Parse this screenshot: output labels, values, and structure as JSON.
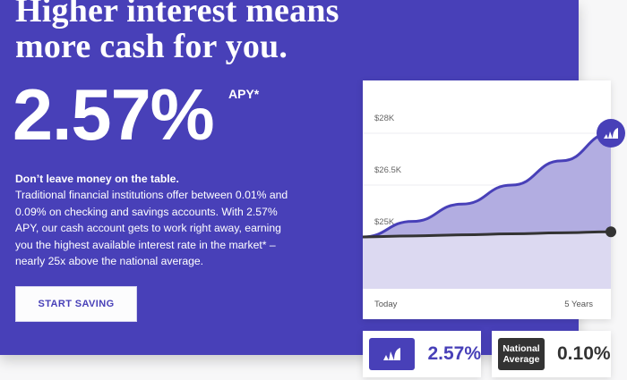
{
  "hero": {
    "headline_lines": [
      "Higher interest means",
      "more cash for you."
    ],
    "rate": "2.57%",
    "rate_suffix": "APY*",
    "lead": "Don’t leave money on the table.",
    "body_lines": [
      "Traditional financial institutions offer between 0.01% and",
      "0.09% on checking and savings accounts. With 2.57%",
      "APY, our cash account gets to work right away, earning",
      "you the highest available interest rate in the market* –",
      "nearly 25x above the national average."
    ],
    "cta_label": "START SAVING",
    "background_color": "#4840b8"
  },
  "chart_data": {
    "type": "area",
    "x_labels": [
      "Today",
      "5 Years"
    ],
    "x": [
      0,
      1,
      2,
      3,
      4,
      5
    ],
    "y_ticks": [
      {
        "value": 25000,
        "label": "$25K"
      },
      {
        "value": 26500,
        "label": "$26.5K"
      },
      {
        "value": 28000,
        "label": "$28K"
      }
    ],
    "ylim": [
      23500,
      29500
    ],
    "grid": true,
    "series": [
      {
        "values": [
          25000,
          25450,
          25950,
          26500,
          27200,
          28000
        ],
        "color": "#4840b8",
        "end_marker": "logo-icon"
      },
      {
        "values": [
          25000,
          25030,
          25060,
          25090,
          25120,
          25150
        ],
        "color": "#333333",
        "end_marker": "dot"
      }
    ]
  },
  "comparison": {
    "ours": {
      "icon": "logo-icon",
      "value": "2.57%",
      "color": "#4840b8"
    },
    "national": {
      "badge_lines": [
        "National",
        "Average"
      ],
      "value": "0.10%",
      "color": "#333333"
    }
  }
}
